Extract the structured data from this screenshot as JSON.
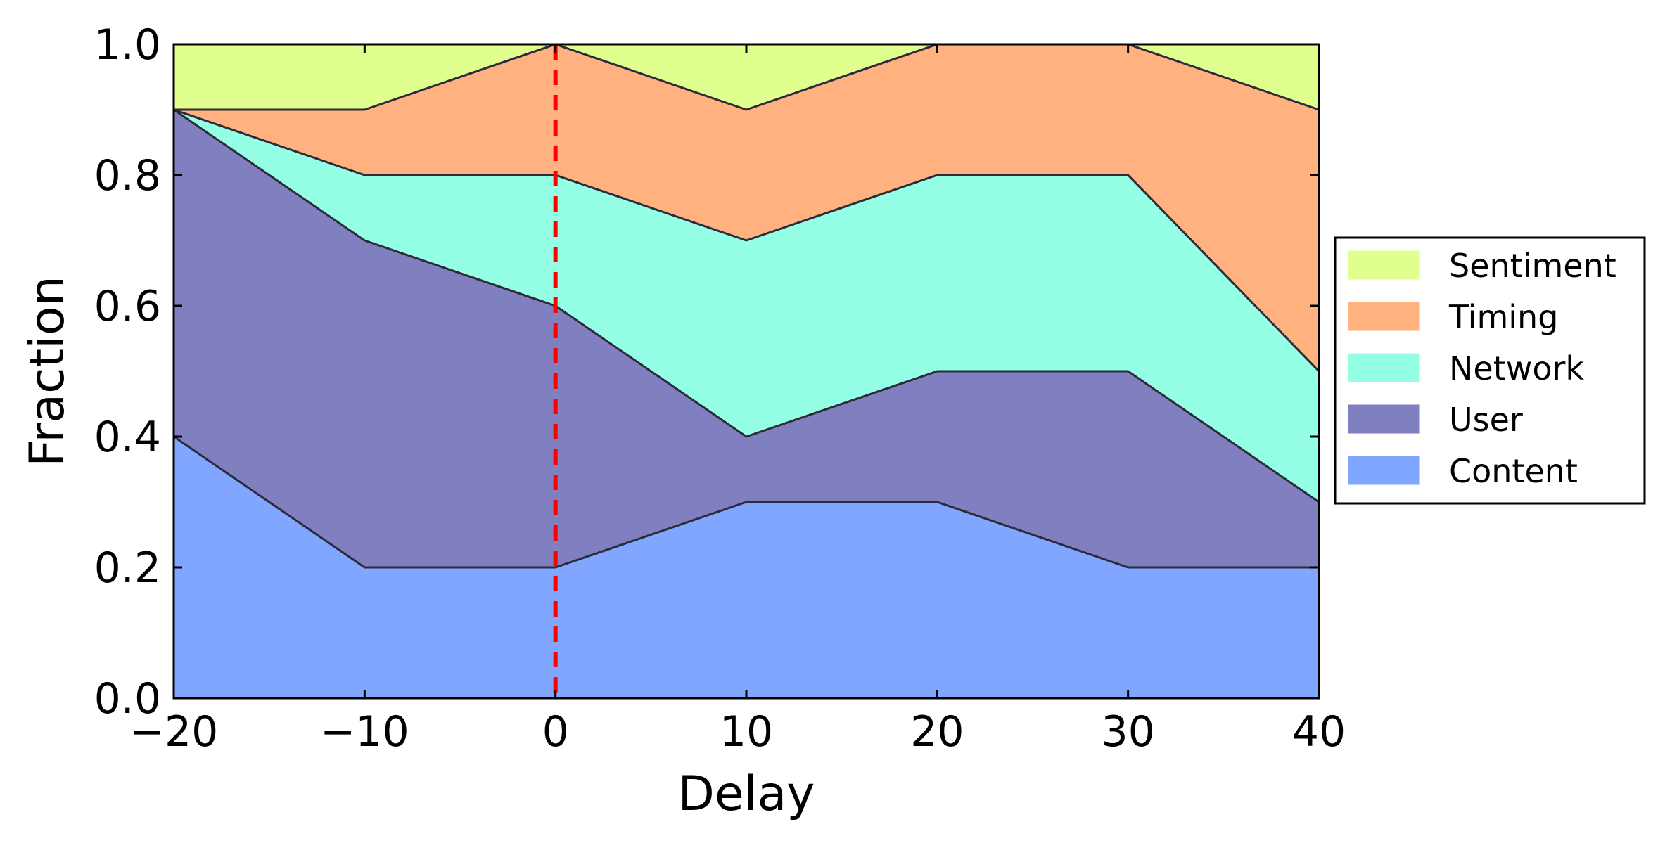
{
  "chart_data": {
    "type": "area",
    "stacked": true,
    "xlabel": "Delay",
    "ylabel": "Fraction",
    "x": [
      -20,
      -10,
      0,
      10,
      20,
      30,
      40
    ],
    "xlim": [
      -20,
      40
    ],
    "ylim": [
      0,
      1
    ],
    "xticks": [
      -20,
      -10,
      0,
      10,
      20,
      30,
      40
    ],
    "xtick_labels": [
      "−20",
      "−10",
      "0",
      "10",
      "20",
      "30",
      "40"
    ],
    "yticks": [
      0.0,
      0.2,
      0.4,
      0.6,
      0.8,
      1.0
    ],
    "ytick_labels": [
      "0.0",
      "0.2",
      "0.4",
      "0.6",
      "0.8",
      "1.0"
    ],
    "grid": false,
    "legend_position": "right",
    "series": [
      {
        "name": "Content",
        "values": [
          0.4,
          0.2,
          0.2,
          0.3,
          0.3,
          0.2,
          0.2
        ],
        "color": "#80a6ff"
      },
      {
        "name": "User",
        "values": [
          0.5,
          0.5,
          0.4,
          0.1,
          0.2,
          0.3,
          0.1
        ],
        "color": "#807fbf"
      },
      {
        "name": "Network",
        "values": [
          0.0,
          0.1,
          0.2,
          0.3,
          0.3,
          0.3,
          0.2
        ],
        "color": "#95ffe6"
      },
      {
        "name": "Timing",
        "values": [
          0.0,
          0.1,
          0.2,
          0.2,
          0.2,
          0.2,
          0.4
        ],
        "color": "#ffb27f"
      },
      {
        "name": "Sentiment",
        "values": [
          0.1,
          0.1,
          0.0,
          0.1,
          0.0,
          0.0,
          0.1
        ],
        "color": "#e1ff8f"
      }
    ],
    "legend_order": [
      "Sentiment",
      "Timing",
      "Network",
      "User",
      "Content"
    ],
    "reference_line": {
      "x": 0,
      "color": "#ff0000",
      "style": "dashed"
    }
  }
}
